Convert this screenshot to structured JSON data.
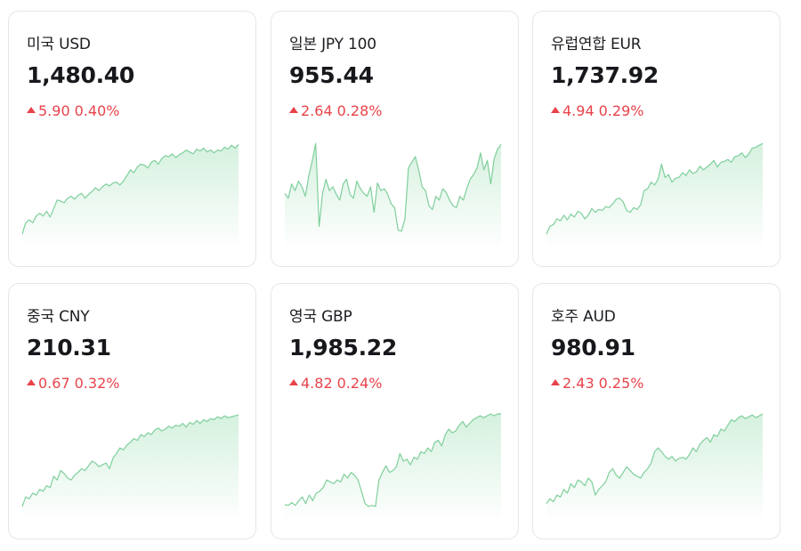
{
  "colors": {
    "accent_up": "#e8434b",
    "sparkline_line": "#7fcf9c",
    "sparkline_fill": "#d3f0dd",
    "card_border": "#e4e6ea"
  },
  "cards": [
    {
      "name": "미국 USD",
      "price": "1,480.40",
      "change": "5.90",
      "change_pct": "0.40%",
      "direction": "up",
      "arrow_icon": "triangle-up-icon",
      "sparkline": [
        0.98,
        0.86,
        0.83,
        0.86,
        0.79,
        0.76,
        0.79,
        0.74,
        0.8,
        0.71,
        0.62,
        0.63,
        0.65,
        0.6,
        0.58,
        0.61,
        0.57,
        0.55,
        0.6,
        0.56,
        0.53,
        0.49,
        0.52,
        0.48,
        0.45,
        0.47,
        0.44,
        0.43,
        0.46,
        0.42,
        0.36,
        0.3,
        0.33,
        0.27,
        0.24,
        0.25,
        0.28,
        0.22,
        0.2,
        0.24,
        0.18,
        0.15,
        0.16,
        0.13,
        0.17,
        0.14,
        0.12,
        0.09,
        0.11,
        0.13,
        0.08,
        0.1,
        0.07,
        0.11,
        0.09,
        0.12,
        0.09,
        0.1,
        0.06,
        0.08,
        0.04,
        0.07,
        0.03
      ]
    },
    {
      "name": "일본 JPY 100",
      "price": "955.44",
      "change": "2.64",
      "change_pct": "0.28%",
      "direction": "up",
      "arrow_icon": "triangle-up-icon",
      "sparkline": [
        0.55,
        0.6,
        0.45,
        0.52,
        0.42,
        0.48,
        0.58,
        0.36,
        0.2,
        0.02,
        0.9,
        0.55,
        0.4,
        0.52,
        0.48,
        0.56,
        0.62,
        0.45,
        0.4,
        0.56,
        0.6,
        0.42,
        0.5,
        0.55,
        0.58,
        0.48,
        0.75,
        0.44,
        0.52,
        0.5,
        0.56,
        0.66,
        0.7,
        0.94,
        0.95,
        0.82,
        0.28,
        0.22,
        0.16,
        0.3,
        0.48,
        0.52,
        0.68,
        0.72,
        0.58,
        0.62,
        0.5,
        0.54,
        0.62,
        0.68,
        0.7,
        0.58,
        0.62,
        0.5,
        0.4,
        0.35,
        0.28,
        0.12,
        0.3,
        0.2,
        0.45,
        0.18,
        0.08,
        0.03
      ]
    },
    {
      "name": "유럽연합 EUR",
      "price": "1,737.92",
      "change": "4.94",
      "change_pct": "0.29%",
      "direction": "up",
      "arrow_icon": "triangle-up-icon",
      "sparkline": [
        0.98,
        0.9,
        0.88,
        0.82,
        0.84,
        0.78,
        0.83,
        0.77,
        0.8,
        0.74,
        0.76,
        0.82,
        0.78,
        0.71,
        0.75,
        0.72,
        0.73,
        0.69,
        0.7,
        0.66,
        0.61,
        0.6,
        0.64,
        0.73,
        0.75,
        0.7,
        0.72,
        0.67,
        0.52,
        0.5,
        0.43,
        0.46,
        0.4,
        0.24,
        0.38,
        0.35,
        0.43,
        0.39,
        0.38,
        0.33,
        0.36,
        0.3,
        0.34,
        0.32,
        0.26,
        0.3,
        0.27,
        0.24,
        0.2,
        0.27,
        0.22,
        0.21,
        0.19,
        0.22,
        0.16,
        0.15,
        0.12,
        0.17,
        0.13,
        0.07,
        0.06,
        0.04,
        0.02
      ]
    },
    {
      "name": "중국 CNY",
      "price": "210.31",
      "change": "0.67",
      "change_pct": "0.32%",
      "direction": "up",
      "arrow_icon": "triangle-up-icon",
      "sparkline": [
        0.98,
        0.88,
        0.9,
        0.84,
        0.86,
        0.8,
        0.82,
        0.76,
        0.78,
        0.66,
        0.7,
        0.6,
        0.63,
        0.68,
        0.7,
        0.65,
        0.62,
        0.58,
        0.6,
        0.55,
        0.5,
        0.52,
        0.56,
        0.54,
        0.52,
        0.58,
        0.47,
        0.42,
        0.36,
        0.38,
        0.33,
        0.3,
        0.26,
        0.28,
        0.22,
        0.24,
        0.2,
        0.22,
        0.17,
        0.15,
        0.18,
        0.16,
        0.13,
        0.15,
        0.12,
        0.13,
        0.1,
        0.14,
        0.09,
        0.11,
        0.07,
        0.1,
        0.06,
        0.08,
        0.05,
        0.06,
        0.03,
        0.05,
        0.02,
        0.04,
        0.03,
        0.02,
        0.01
      ]
    },
    {
      "name": "영국 GBP",
      "price": "1,985.22",
      "change": "4.82",
      "change_pct": "0.24%",
      "direction": "up",
      "arrow_icon": "triangle-up-icon",
      "sparkline": [
        0.96,
        0.97,
        0.94,
        0.97,
        0.92,
        0.88,
        0.95,
        0.86,
        0.92,
        0.84,
        0.82,
        0.78,
        0.7,
        0.72,
        0.74,
        0.7,
        0.72,
        0.64,
        0.68,
        0.62,
        0.65,
        0.7,
        0.82,
        0.95,
        0.98,
        0.97,
        0.98,
        0.7,
        0.62,
        0.55,
        0.62,
        0.6,
        0.56,
        0.42,
        0.5,
        0.48,
        0.54,
        0.46,
        0.48,
        0.4,
        0.42,
        0.36,
        0.4,
        0.3,
        0.28,
        0.34,
        0.22,
        0.16,
        0.2,
        0.18,
        0.12,
        0.08,
        0.14,
        0.1,
        0.06,
        0.04,
        0.02,
        0.04,
        0.02,
        0.0,
        0.02,
        0.0,
        0.0
      ]
    },
    {
      "name": "호주 AUD",
      "price": "980.91",
      "change": "2.43",
      "change_pct": "0.25%",
      "direction": "up",
      "arrow_icon": "triangle-up-icon",
      "sparkline": [
        0.95,
        0.9,
        0.93,
        0.86,
        0.88,
        0.8,
        0.84,
        0.74,
        0.78,
        0.7,
        0.72,
        0.76,
        0.68,
        0.72,
        0.86,
        0.8,
        0.76,
        0.72,
        0.62,
        0.58,
        0.65,
        0.68,
        0.62,
        0.56,
        0.6,
        0.64,
        0.66,
        0.68,
        0.62,
        0.58,
        0.52,
        0.4,
        0.36,
        0.4,
        0.45,
        0.48,
        0.45,
        0.5,
        0.47,
        0.46,
        0.48,
        0.43,
        0.36,
        0.4,
        0.32,
        0.28,
        0.25,
        0.3,
        0.22,
        0.24,
        0.16,
        0.18,
        0.12,
        0.06,
        0.08,
        0.04,
        0.02,
        0.05,
        0.03,
        0.01,
        0.04,
        0.02,
        0.0
      ]
    }
  ]
}
